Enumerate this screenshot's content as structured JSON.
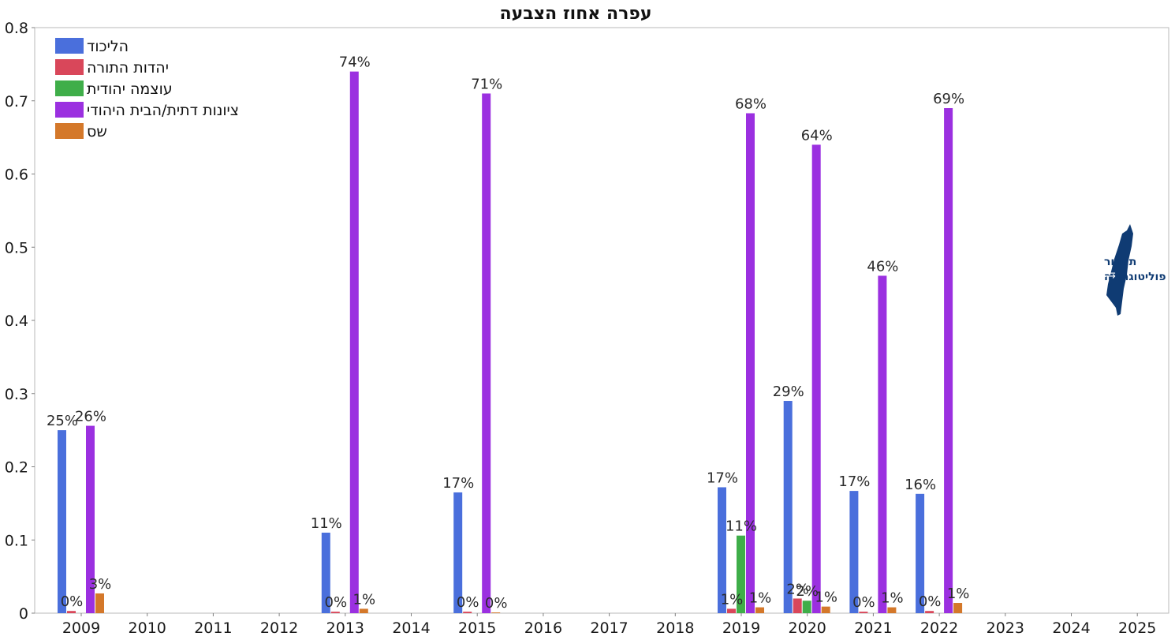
{
  "chart_data": {
    "type": "bar",
    "title": "עפרה אחוז הצבעה",
    "categories": [
      "2009",
      "2010",
      "2011",
      "2012",
      "2013",
      "2014",
      "2015",
      "2016",
      "2017",
      "2018",
      "2019",
      "2020",
      "2021",
      "2022",
      "2023",
      "2024",
      "2025"
    ],
    "ylim": [
      0,
      0.8
    ],
    "yticks": [
      0,
      0.1,
      0.2,
      0.3,
      0.4,
      0.5,
      0.6,
      0.7,
      0.8
    ],
    "ytick_labels": [
      "0",
      "0.1",
      "0.2",
      "0.3",
      "0.4",
      "0.5",
      "0.6",
      "0.7",
      "0.8"
    ],
    "grid": false,
    "legend_position": "top-left",
    "series": [
      {
        "name": "הליכוד",
        "color": "#4a6fdc",
        "values": [
          0.25,
          null,
          null,
          null,
          0.11,
          null,
          0.165,
          null,
          null,
          null,
          0.172,
          0.29,
          0.167,
          0.163,
          null,
          null,
          null
        ],
        "labels": [
          "25%",
          "",
          "",
          "",
          "11%",
          "",
          "17%",
          "",
          "",
          "",
          "17%",
          "29%",
          "17%",
          "16%",
          "",
          "",
          ""
        ]
      },
      {
        "name": "יהדות התורה",
        "color": "#d9475a",
        "values": [
          0.003,
          null,
          null,
          null,
          0.002,
          null,
          0.002,
          null,
          null,
          null,
          0.006,
          0.02,
          0.002,
          0.003,
          null,
          null,
          null
        ],
        "labels": [
          "0%",
          "",
          "",
          "",
          "0%",
          "",
          "0%",
          "",
          "",
          "",
          "1%",
          "2%",
          "0%",
          "0%",
          "",
          "",
          ""
        ]
      },
      {
        "name": "עוצמה יהודית",
        "color": "#3fae49",
        "values": [
          null,
          null,
          null,
          null,
          null,
          null,
          null,
          null,
          null,
          null,
          0.106,
          0.017,
          null,
          null,
          null,
          null,
          null
        ],
        "labels": [
          "",
          "",
          "",
          "",
          "",
          "",
          "",
          "",
          "",
          "",
          "11%",
          "2%",
          "",
          "",
          "",
          "",
          ""
        ]
      },
      {
        "name": "ציונות דתית/הבית היהודי",
        "color": "#9b30e0",
        "values": [
          0.256,
          null,
          null,
          null,
          0.74,
          null,
          0.71,
          null,
          null,
          null,
          0.683,
          0.64,
          0.461,
          0.69,
          null,
          null,
          null
        ],
        "labels": [
          "26%",
          "",
          "",
          "",
          "74%",
          "",
          "71%",
          "",
          "",
          "",
          "68%",
          "64%",
          "46%",
          "69%",
          "",
          "",
          ""
        ]
      },
      {
        "name": "שס",
        "color": "#d4782a",
        "values": [
          0.027,
          null,
          null,
          null,
          0.006,
          null,
          0.001,
          null,
          null,
          null,
          0.008,
          0.009,
          0.008,
          0.014,
          null,
          null,
          null
        ],
        "labels": [
          "3%",
          "",
          "",
          "",
          "1%",
          "",
          "0%",
          "",
          "",
          "",
          "1%",
          "1%",
          "1%",
          "1%",
          "",
          "",
          ""
        ]
      }
    ]
  },
  "logo": {
    "line1": "תמרור",
    "line2": "פוליטוגרפיה",
    "icon": "israel-map-icon"
  }
}
